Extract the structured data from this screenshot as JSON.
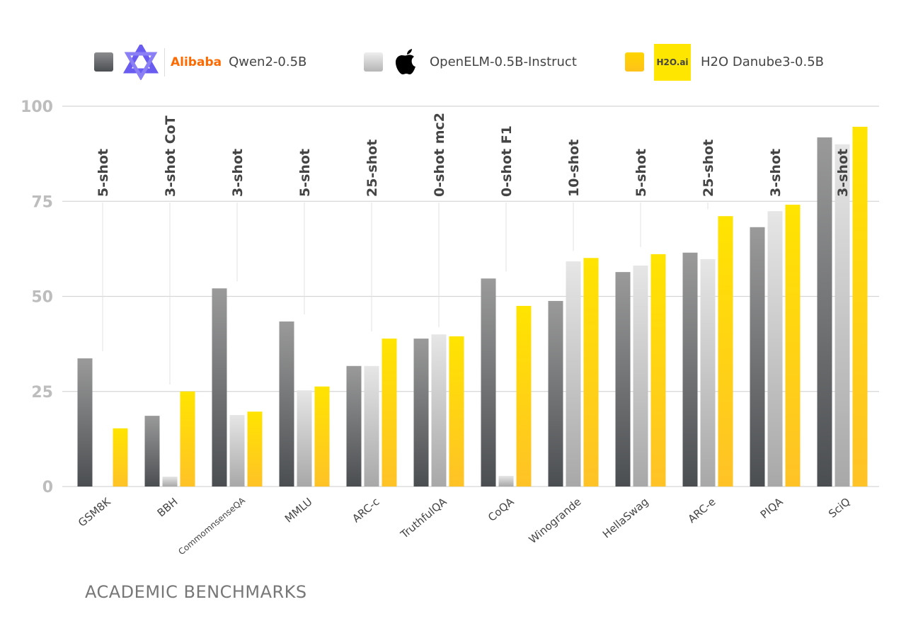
{
  "legend": [
    {
      "name": "Qwen2-0.5B",
      "logo": "Alibaba",
      "color": "#5c5f62"
    },
    {
      "name": "OpenELM-0.5B-Instruct",
      "logo": "apple-logo",
      "color": "#d0d0d0"
    },
    {
      "name": "H2O Danube3-0.5B",
      "logo": "H2O.ai",
      "color": "#ffd400"
    }
  ],
  "footer": "ACADEMIC BENCHMARKS",
  "chart_data": {
    "type": "bar",
    "categories": [
      "GSM8K",
      "BBH",
      "CommomnsenseQA",
      "MMLU",
      "ARC-c",
      "TruthfulQA",
      "CoQA",
      "Winogrande",
      "HellaSwag",
      "ARC-e",
      "PIQA",
      "SciQ"
    ],
    "annotations": [
      "5-shot",
      "3-shot CoT",
      "3-shot",
      "5-shot",
      "25-shot",
      "0-shot mc2",
      "0-shot F1",
      "10-shot",
      "5-shot",
      "25-shot",
      "3-shot",
      "3-shot"
    ],
    "series": [
      {
        "name": "Qwen2-0.5B",
        "values": [
          33.7,
          18.6,
          52.1,
          43.4,
          31.7,
          38.9,
          54.7,
          48.8,
          56.4,
          61.5,
          68.2,
          91.8
        ]
      },
      {
        "name": "OpenELM-0.5B-Instruct",
        "values": [
          0,
          2.6,
          18.8,
          25.3,
          31.7,
          40.0,
          2.8,
          59.2,
          58.1,
          59.8,
          72.4,
          90.0
        ]
      },
      {
        "name": "H2O Danube3-0.5B",
        "values": [
          15.3,
          25.0,
          19.7,
          26.3,
          38.9,
          39.5,
          47.5,
          60.1,
          61.1,
          71.1,
          74.1,
          94.6
        ]
      }
    ],
    "yticks": [
      0,
      25,
      50,
      75,
      100
    ],
    "ylim": [
      0,
      100
    ],
    "grid": true,
    "legend_position": "top"
  }
}
